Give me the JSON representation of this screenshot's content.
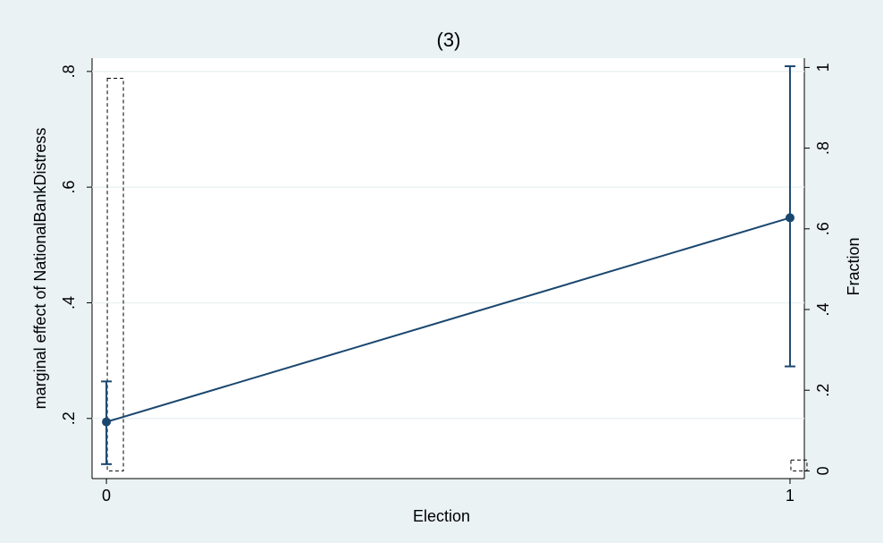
{
  "chart_data": {
    "type": "line",
    "title": "(3)",
    "x_label": "Election",
    "y_label": "marginal effect of NationalBankDistress",
    "y2_label": "Fraction",
    "x": [
      0,
      1
    ],
    "values": [
      0.194,
      0.547
    ],
    "ci_low": [
      0.121,
      0.29
    ],
    "ci_high": [
      0.264,
      0.809
    ],
    "color": "#1a476f",
    "histogram": {
      "values": [
        0.973,
        0.027
      ],
      "axis": "y2",
      "color": "#000000"
    },
    "xlim": [
      -0.021,
      1.021
    ],
    "xticks": [
      0,
      1
    ],
    "ylim": [
      0.096,
      0.823
    ],
    "yticks": [
      {
        "value": 0.2,
        "label": ".2"
      },
      {
        "value": 0.4,
        "label": ".4"
      },
      {
        "value": 0.6,
        "label": ".6"
      },
      {
        "value": 0.8,
        "label": ".8"
      }
    ],
    "y2lim": [
      -0.019,
      1.023
    ],
    "y2ticks": [
      0,
      {
        "value": 0.2,
        "label": ".2"
      },
      {
        "value": 0.4,
        "label": ".4"
      },
      {
        "value": 0.6,
        "label": ".6"
      },
      {
        "value": 0.8,
        "label": ".8"
      },
      1
    ],
    "grid": true
  }
}
